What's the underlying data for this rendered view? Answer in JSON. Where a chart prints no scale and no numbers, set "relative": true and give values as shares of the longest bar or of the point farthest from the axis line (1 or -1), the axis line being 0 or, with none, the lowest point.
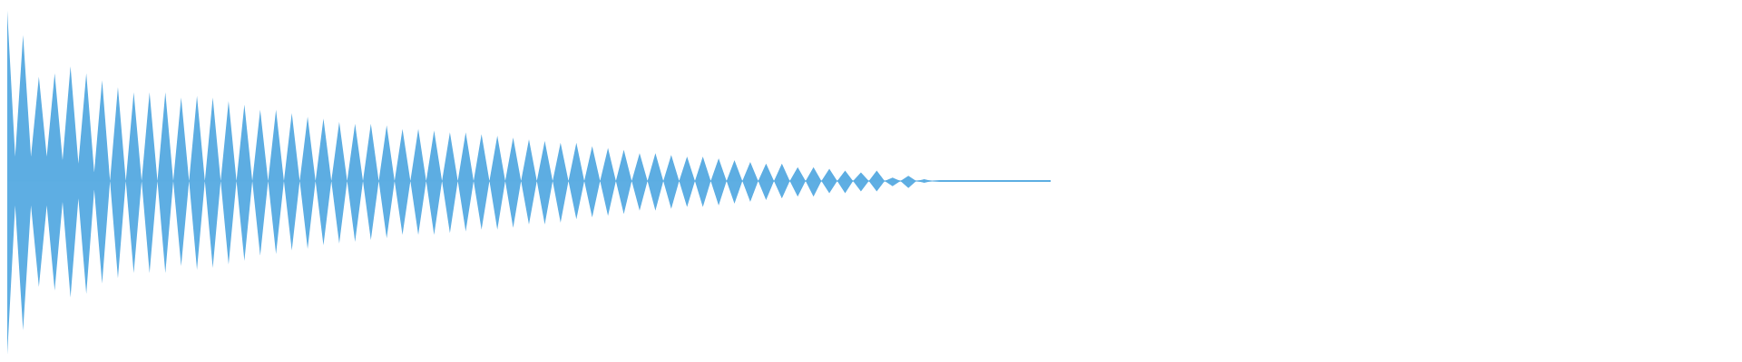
{
  "chart_data": {
    "type": "area",
    "relative": true,
    "ref_lines": [
      {
        "axis": "y",
        "value": 0,
        "color": "#5dade2"
      }
    ],
    "categories": [
      null,
      null,
      null,
      null,
      null,
      null,
      null,
      null,
      null,
      null,
      null,
      null,
      null,
      null,
      null,
      null,
      null,
      null,
      null,
      null,
      null,
      null,
      null,
      null,
      null,
      null,
      null,
      null,
      null,
      null,
      null,
      null,
      null,
      null,
      null,
      null,
      null,
      null,
      null,
      null,
      null,
      null,
      null,
      null,
      null,
      null,
      null,
      null,
      null,
      null,
      null,
      null,
      null,
      null,
      null,
      null,
      null,
      null,
      null,
      null,
      null,
      null,
      null,
      null,
      null,
      null,
      null,
      null,
      null,
      null,
      null,
      null,
      null,
      null,
      null,
      null,
      null,
      null,
      null,
      null,
      null,
      null,
      null,
      null,
      null,
      null,
      null,
      null,
      null,
      null,
      null,
      null,
      null,
      null,
      null,
      null,
      null,
      null,
      null,
      null,
      null,
      null,
      null,
      null,
      null,
      null,
      null,
      null,
      null,
      null,
      null,
      null,
      null,
      null,
      null,
      null,
      null,
      null,
      null,
      null,
      null,
      null,
      null,
      null,
      null,
      null,
      null,
      null,
      null,
      null,
      null,
      null,
      null
    ],
    "series": [
      {
        "color": "#5dade2",
        "values": [
          0.98,
          0.14,
          0.84,
          0.14,
          0.6,
          0.14,
          0.62,
          0.12,
          0.66,
          0.1,
          0.62,
          0.05,
          0.58,
          0,
          0.54,
          0,
          0.51,
          0,
          0.51,
          0,
          0.51,
          0,
          0.48,
          0,
          0.49,
          0,
          0.48,
          0,
          0.46,
          0,
          0.44,
          0,
          0.41,
          0,
          0.41,
          0,
          0.39,
          0,
          0.37,
          0,
          0.36,
          0,
          0.34,
          0,
          0.33,
          0,
          0.33,
          0,
          0.32,
          0,
          0.3,
          0,
          0.3,
          0,
          0.29,
          0,
          0.28,
          0,
          0.28,
          0,
          0.27,
          0,
          0.26,
          0,
          0.25,
          0,
          0.24,
          0,
          0.23,
          0,
          0.22,
          0,
          0.22,
          0,
          0.2,
          0,
          0.19,
          0,
          0.18,
          0,
          0.16,
          0,
          0.16,
          0,
          0.15,
          0,
          0.14,
          0,
          0.14,
          0,
          0.13,
          0,
          0.12,
          0,
          0.11,
          0,
          0.1,
          0,
          0.1,
          0,
          0.08,
          0,
          0.08,
          0,
          0.07,
          0,
          0.06,
          0,
          0.05,
          0,
          0.06,
          0,
          0.02,
          0,
          0.03,
          0,
          0.01,
          0,
          0.005,
          0.005,
          0.005,
          0.005,
          0.005,
          0.005,
          0.005,
          0.005,
          0.005,
          0.005,
          0.005,
          0.005,
          0.005,
          0.005,
          0.005
        ]
      },
      {
        "color": "#5eaee3",
        "values": [
          -1,
          -0.14,
          -0.86,
          -0.14,
          -0.61,
          -0.14,
          -0.63,
          -0.12,
          -0.67,
          -0.1,
          -0.65,
          -0.05,
          -0.59,
          0,
          -0.56,
          0,
          -0.53,
          0,
          -0.53,
          0,
          -0.53,
          0,
          -0.49,
          0,
          -0.51,
          0,
          -0.5,
          0,
          -0.48,
          0,
          -0.46,
          0,
          -0.43,
          0,
          -0.42,
          0,
          -0.4,
          0,
          -0.39,
          0,
          -0.37,
          0,
          -0.36,
          0,
          -0.35,
          0,
          -0.34,
          0,
          -0.33,
          0,
          -0.31,
          0,
          -0.31,
          0,
          -0.31,
          0,
          -0.3,
          0,
          -0.29,
          0,
          -0.28,
          0,
          -0.28,
          0,
          -0.27,
          0,
          -0.25,
          0,
          -0.25,
          0,
          -0.24,
          0,
          -0.22,
          0,
          -0.21,
          0,
          -0.2,
          0,
          -0.19,
          0,
          -0.17,
          0,
          -0.17,
          0,
          -0.16,
          0,
          -0.15,
          0,
          -0.15,
          0,
          -0.14,
          0,
          -0.13,
          0,
          -0.12,
          0,
          -0.11,
          0,
          -0.1,
          0,
          -0.09,
          0,
          -0.09,
          0,
          -0.07,
          0,
          -0.07,
          0,
          -0.06,
          0,
          -0.06,
          0,
          -0.03,
          0,
          -0.04,
          0,
          -0.01,
          0,
          -0.005,
          -0.005,
          -0.005,
          -0.005,
          -0.005,
          -0.005,
          -0.005,
          -0.005,
          -0.005,
          -0.005,
          -0.005,
          -0.005,
          -0.005,
          -0.005,
          -0.005
        ]
      }
    ]
  }
}
